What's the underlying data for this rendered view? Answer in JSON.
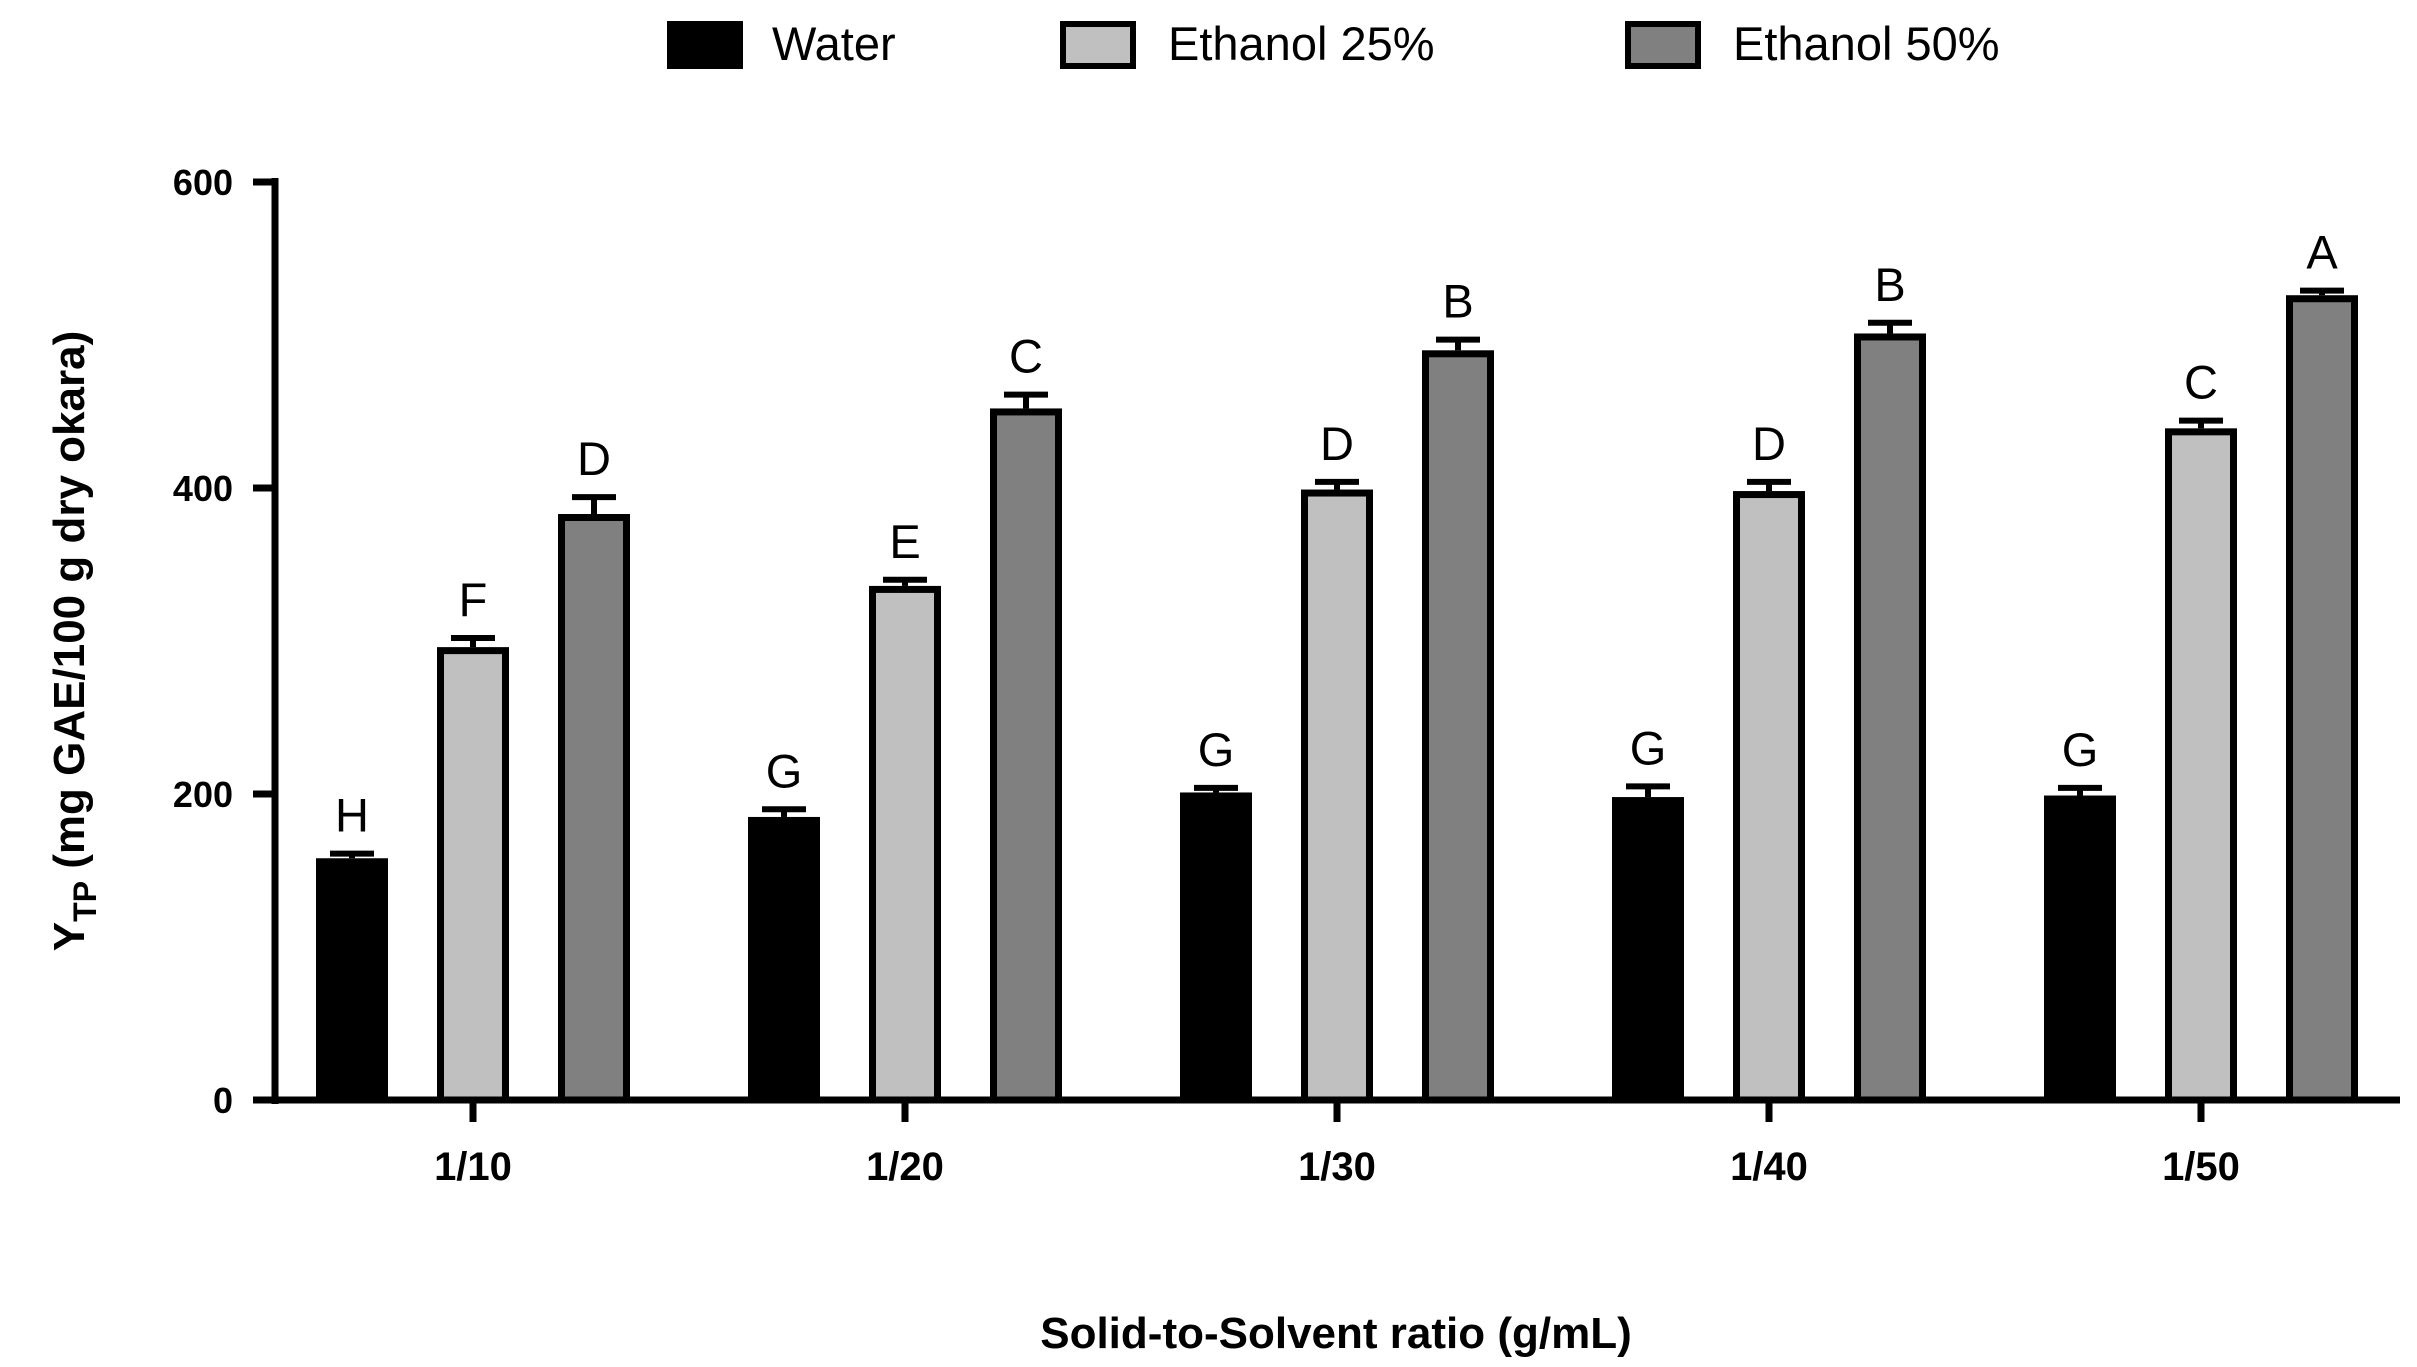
{
  "chart_data": {
    "type": "bar",
    "title": "",
    "xlabel": "Solid-to-Solvent ratio (g/mL)",
    "ylabel": {
      "main": "Y",
      "subscript": "TP",
      "rest": " (mg GAE/100 g dry okara)"
    },
    "ylim": [
      0,
      600
    ],
    "yticks": [
      "0",
      "200",
      "400",
      "600"
    ],
    "ytick_values": [
      0,
      200,
      400,
      600
    ],
    "legend_position": "top",
    "categories": [
      "1/10",
      "1/20",
      "1/30",
      "1/40",
      "1/50"
    ],
    "series": [
      {
        "name": "Water",
        "color": "#000000",
        "values": [
          158,
          185,
          201,
          198,
          199
        ],
        "errors": [
          3,
          5,
          3,
          7,
          5
        ],
        "letters": [
          "H",
          "G",
          "G",
          "G",
          "G"
        ]
      },
      {
        "name": "Ethanol 25%",
        "color": "#c0c0c0",
        "values": [
          296,
          336,
          399,
          398,
          439
        ],
        "errors": [
          6,
          4,
          5,
          6,
          5
        ],
        "letters": [
          "F",
          "E",
          "D",
          "D",
          "C"
        ]
      },
      {
        "name": "Ethanol 50%",
        "color": "#808080",
        "values": [
          383,
          452,
          490,
          501,
          526
        ],
        "errors": [
          11,
          9,
          7,
          7,
          3
        ],
        "letters": [
          "D",
          "C",
          "B",
          "B",
          "A"
        ]
      }
    ]
  }
}
